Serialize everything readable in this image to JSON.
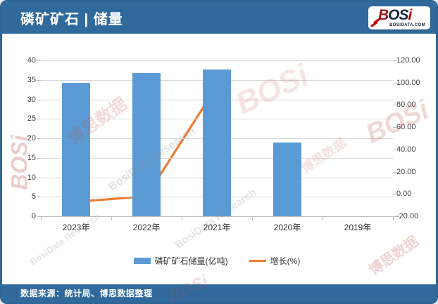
{
  "header": {
    "title": "磷矿矿石 | 储量",
    "logo": {
      "part1": "B",
      "part2": "OS",
      "part3": "i",
      "domain": "BOSIDATA.COM"
    }
  },
  "footer": {
    "source": "数据来源：统计局、博思数据整理"
  },
  "watermark": {
    "cn": "博思数据",
    "en": "BosiData Research",
    "logo": "BOSi"
  },
  "colors": {
    "header_blue": "#306a9c",
    "bar_blue": "#5b9bd5",
    "line_orange": "#ed7d31",
    "gridline": "#d9d9d9"
  },
  "chart_data": {
    "type": "bar",
    "subtype": "bar+line-combo",
    "categories": [
      "2023年",
      "2022年",
      "2021年",
      "2020年",
      "2019年"
    ],
    "series": [
      {
        "name": "磷矿矿石储量(亿吨)",
        "type": "bar",
        "axis": "left",
        "values": [
          34.2,
          36.8,
          37.6,
          19.0,
          null
        ]
      },
      {
        "name": "增长(%)",
        "type": "line",
        "axis": "right",
        "values": [
          -7.0,
          -2.1,
          97.0,
          null,
          null
        ]
      }
    ],
    "left_axis": {
      "min": 0,
      "max": 40,
      "step": 5,
      "ticks": [
        "0",
        "5",
        "10",
        "15",
        "20",
        "25",
        "30",
        "35",
        "40"
      ]
    },
    "right_axis": {
      "min": -20,
      "max": 120,
      "step": 20,
      "ticks": [
        "-20.00",
        "0.00",
        "20.00",
        "40.00",
        "60.00",
        "80.00",
        "100.00",
        "120.00"
      ]
    },
    "grid": true,
    "legend_position": "bottom"
  }
}
